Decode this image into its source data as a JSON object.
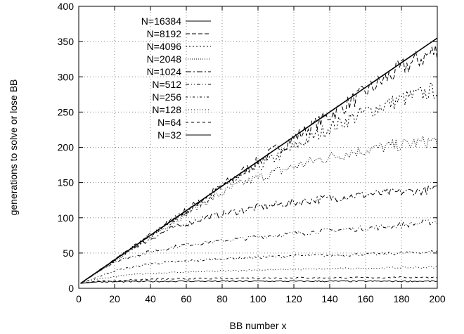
{
  "chart_data": {
    "type": "line",
    "xlabel": "BB number x",
    "ylabel": "generations to solve or lose BB",
    "xlim": [
      0,
      200
    ],
    "ylim": [
      0,
      400
    ],
    "xticks": [
      "0",
      "20",
      "40",
      "60",
      "80",
      "100",
      "120",
      "140",
      "160",
      "180",
      "200"
    ],
    "yticks": [
      "0",
      "50",
      "100",
      "150",
      "200",
      "250",
      "300",
      "350",
      "400"
    ],
    "grid": true,
    "legend_position": "top-left",
    "series": [
      {
        "name": "N=16384",
        "dash": "",
        "points": [
          [
            1,
            7
          ],
          [
            200,
            355
          ]
        ]
      },
      {
        "name": "N=8192",
        "dash": "6,3",
        "points": [
          [
            1,
            7
          ],
          [
            50,
            93
          ],
          [
            100,
            180
          ],
          [
            150,
            262
          ],
          [
            180,
            312
          ],
          [
            200,
            338
          ]
        ]
      },
      {
        "name": "N=4096",
        "dash": "2,3",
        "points": [
          [
            1,
            7
          ],
          [
            50,
            92
          ],
          [
            80,
            142
          ],
          [
            100,
            172
          ],
          [
            120,
            200
          ],
          [
            140,
            228
          ],
          [
            160,
            250
          ],
          [
            180,
            268
          ],
          [
            200,
            282
          ]
        ]
      },
      {
        "name": "N=2048",
        "dash": "1,2",
        "points": [
          [
            1,
            7
          ],
          [
            50,
            90
          ],
          [
            70,
            122
          ],
          [
            90,
            148
          ],
          [
            110,
            165
          ],
          [
            130,
            180
          ],
          [
            150,
            192
          ],
          [
            170,
            200
          ],
          [
            200,
            210
          ]
        ]
      },
      {
        "name": "N=1024",
        "dash": "8,3,2,3",
        "points": [
          [
            1,
            7
          ],
          [
            30,
            57
          ],
          [
            50,
            83
          ],
          [
            70,
            100
          ],
          [
            100,
            115
          ],
          [
            130,
            125
          ],
          [
            160,
            133
          ],
          [
            200,
            140
          ]
        ]
      },
      {
        "name": "N=512",
        "dash": "5,3,1,3,1,3",
        "points": [
          [
            1,
            7
          ],
          [
            20,
            38
          ],
          [
            40,
            52
          ],
          [
            60,
            62
          ],
          [
            100,
            73
          ],
          [
            140,
            82
          ],
          [
            170,
            87
          ],
          [
            200,
            95
          ]
        ]
      },
      {
        "name": "N=256",
        "dash": "3,3,1,3",
        "points": [
          [
            1,
            7
          ],
          [
            20,
            25
          ],
          [
            40,
            35
          ],
          [
            80,
            42
          ],
          [
            120,
            46
          ],
          [
            160,
            48
          ],
          [
            200,
            52
          ]
        ]
      },
      {
        "name": "N=128",
        "dash": "1,3",
        "points": [
          [
            1,
            7
          ],
          [
            10,
            13
          ],
          [
            30,
            20
          ],
          [
            60,
            23
          ],
          [
            100,
            26
          ],
          [
            150,
            28
          ],
          [
            200,
            30
          ]
        ]
      },
      {
        "name": "N=64",
        "dash": "4,4",
        "points": [
          [
            1,
            7
          ],
          [
            10,
            10
          ],
          [
            40,
            13
          ],
          [
            80,
            14
          ],
          [
            120,
            15
          ],
          [
            160,
            15
          ],
          [
            200,
            16
          ]
        ]
      },
      {
        "name": "N=32",
        "dash": "",
        "points": [
          [
            1,
            7
          ],
          [
            10,
            9
          ],
          [
            50,
            10
          ],
          [
            100,
            10
          ],
          [
            150,
            10
          ],
          [
            200,
            10
          ]
        ]
      }
    ]
  }
}
